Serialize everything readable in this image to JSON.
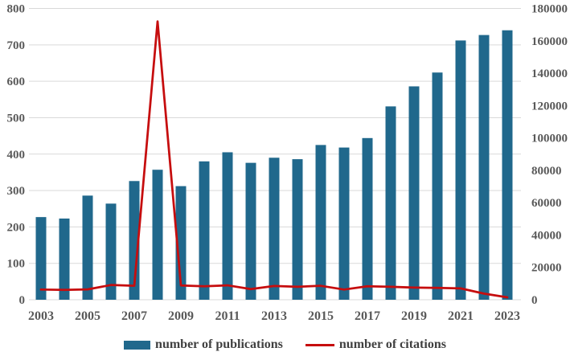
{
  "chart_data": {
    "type": "combo-bar-line",
    "title": "",
    "categories": [
      "2003",
      "2004",
      "2005",
      "2006",
      "2007",
      "2008",
      "2009",
      "2010",
      "2011",
      "2012",
      "2013",
      "2014",
      "2015",
      "2016",
      "2017",
      "2018",
      "2019",
      "2020",
      "2021",
      "2022",
      "2023"
    ],
    "series": [
      {
        "name": "number of publications",
        "chart": "bar",
        "axis": "left",
        "color": "#20688c",
        "values": [
          227,
          223,
          286,
          264,
          326,
          357,
          312,
          380,
          405,
          376,
          390,
          386,
          425,
          418,
          444,
          531,
          586,
          624,
          712,
          727,
          740
        ]
      },
      {
        "name": "number of citations",
        "chart": "line",
        "axis": "right",
        "color": "#c60d0e",
        "values": [
          6300,
          6100,
          6400,
          9100,
          8600,
          172000,
          8800,
          8300,
          8900,
          6600,
          8500,
          8000,
          8600,
          6300,
          8300,
          8000,
          7500,
          7300,
          7000,
          3800,
          1500
        ]
      }
    ],
    "left_axis": {
      "min": 0,
      "max": 800,
      "step": 100,
      "tick_labels": [
        "0",
        "100",
        "200",
        "300",
        "400",
        "500",
        "600",
        "700",
        "800"
      ]
    },
    "right_axis": {
      "min": 0,
      "max": 180000,
      "step": 20000,
      "tick_labels": [
        "0",
        "20000",
        "40000",
        "60000",
        "80000",
        "100000",
        "120000",
        "140000",
        "160000",
        "180000"
      ]
    },
    "x_axis": {
      "tick_labels": [
        "2003",
        "2005",
        "2007",
        "2009",
        "2011",
        "2013",
        "2015",
        "2017",
        "2019",
        "2021",
        "2023"
      ],
      "label_every": 2
    },
    "grid": true,
    "legend_position": "bottom",
    "colors": {
      "grid": "#d9d9d9",
      "tick_text": "#595959",
      "legend_text": "#404040",
      "background": "#ffffff"
    }
  }
}
